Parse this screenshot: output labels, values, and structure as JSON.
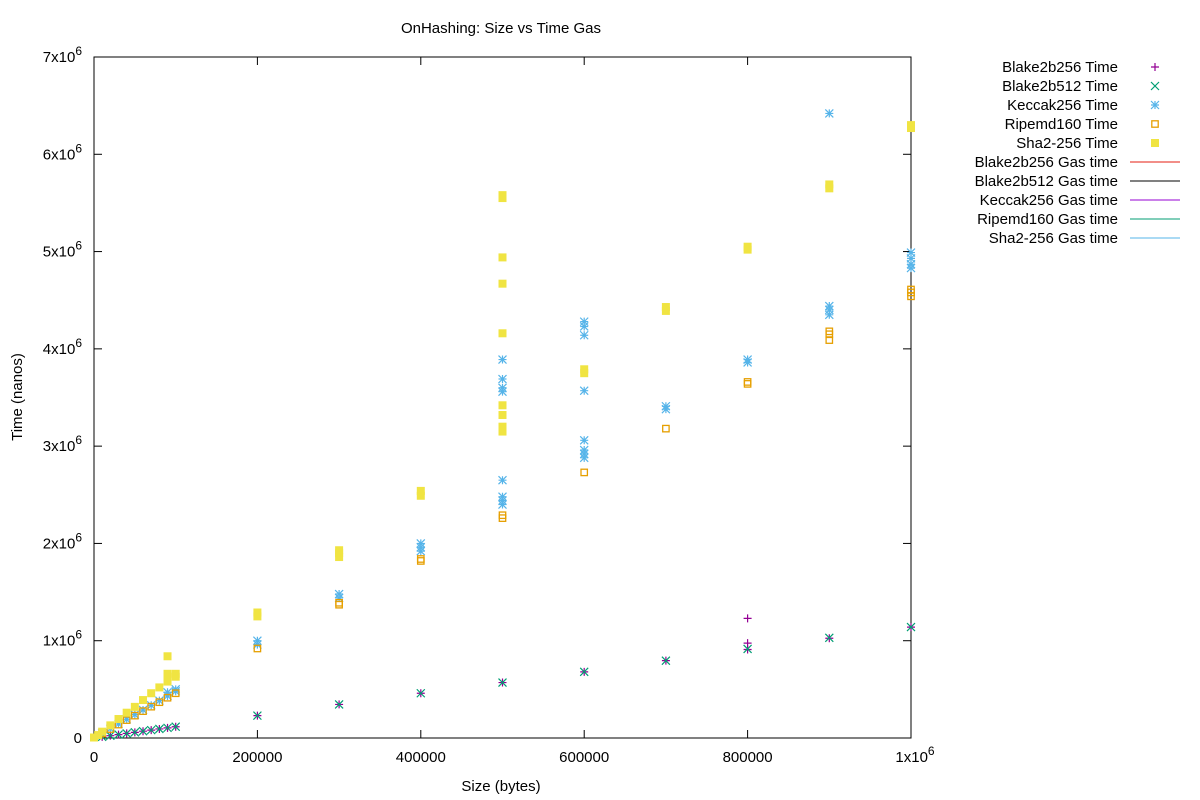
{
  "chart_data": {
    "type": "scatter",
    "title": "OnHashing: Size vs Time   Gas",
    "xlabel": "Size (bytes)",
    "ylabel": "Time (nanos)",
    "xlim": [
      0,
      1000000
    ],
    "ylim": [
      0,
      7000000
    ],
    "x_ticks": [
      {
        "value": 0,
        "label": "0"
      },
      {
        "value": 200000,
        "label": "200000"
      },
      {
        "value": 400000,
        "label": "400000"
      },
      {
        "value": 600000,
        "label": "600000"
      },
      {
        "value": 800000,
        "label": "800000"
      },
      {
        "value": 1000000,
        "label": "1x10",
        "exp": "6"
      }
    ],
    "y_ticks": [
      {
        "value": 0,
        "label": "0"
      },
      {
        "value": 1000000,
        "label": "1x10",
        "exp": "6"
      },
      {
        "value": 2000000,
        "label": "2x10",
        "exp": "6"
      },
      {
        "value": 3000000,
        "label": "3x10",
        "exp": "6"
      },
      {
        "value": 4000000,
        "label": "4x10",
        "exp": "6"
      },
      {
        "value": 5000000,
        "label": "5x10",
        "exp": "6"
      },
      {
        "value": 6000000,
        "label": "6x10",
        "exp": "6"
      },
      {
        "value": 7000000,
        "label": "7x10",
        "exp": "6"
      }
    ],
    "grid": false,
    "legend_position": "outside-right",
    "series": [
      {
        "name": "Blake2b256 Time",
        "marker": "plus",
        "color": "#940094",
        "points": [
          [
            10000,
            12000
          ],
          [
            20000,
            24000
          ],
          [
            30000,
            35000
          ],
          [
            40000,
            47000
          ],
          [
            50000,
            58000
          ],
          [
            60000,
            70000
          ],
          [
            70000,
            81000
          ],
          [
            80000,
            93000
          ],
          [
            90000,
            104000
          ],
          [
            100000,
            116000
          ],
          [
            200000,
            230000
          ],
          [
            300000,
            345000
          ],
          [
            400000,
            460000
          ],
          [
            500000,
            570000
          ],
          [
            600000,
            680000
          ],
          [
            700000,
            795000
          ],
          [
            800000,
            910000
          ],
          [
            800000,
            975000
          ],
          [
            800000,
            1230000
          ],
          [
            900000,
            1025000
          ],
          [
            1000000,
            1140000
          ]
        ]
      },
      {
        "name": "Blake2b512 Time",
        "marker": "cross",
        "color": "#009e73",
        "points": [
          [
            10000,
            12000
          ],
          [
            20000,
            24000
          ],
          [
            30000,
            35000
          ],
          [
            40000,
            47000
          ],
          [
            50000,
            58000
          ],
          [
            60000,
            70000
          ],
          [
            70000,
            81000
          ],
          [
            80000,
            93000
          ],
          [
            90000,
            104000
          ],
          [
            100000,
            116000
          ],
          [
            200000,
            230000
          ],
          [
            300000,
            345000
          ],
          [
            400000,
            460000
          ],
          [
            500000,
            570000
          ],
          [
            600000,
            680000
          ],
          [
            700000,
            795000
          ],
          [
            800000,
            915000
          ],
          [
            900000,
            1030000
          ],
          [
            1000000,
            1140000
          ]
        ]
      },
      {
        "name": "Keccak256 Time",
        "marker": "star",
        "color": "#56b4e9",
        "points": [
          [
            10000,
            48000
          ],
          [
            20000,
            96000
          ],
          [
            30000,
            144000
          ],
          [
            40000,
            192000
          ],
          [
            50000,
            240000
          ],
          [
            60000,
            288000
          ],
          [
            70000,
            336000
          ],
          [
            80000,
            384000
          ],
          [
            90000,
            432000
          ],
          [
            90000,
            470000
          ],
          [
            100000,
            480000
          ],
          [
            100000,
            500000
          ],
          [
            200000,
            960000
          ],
          [
            200000,
            1000000
          ],
          [
            300000,
            1440000
          ],
          [
            300000,
            1480000
          ],
          [
            400000,
            1920000
          ],
          [
            400000,
            1960000
          ],
          [
            400000,
            2000000
          ],
          [
            500000,
            2400000
          ],
          [
            500000,
            2440000
          ],
          [
            500000,
            2480000
          ],
          [
            500000,
            2650000
          ],
          [
            500000,
            3560000
          ],
          [
            500000,
            3600000
          ],
          [
            500000,
            3690000
          ],
          [
            500000,
            3890000
          ],
          [
            600000,
            2880000
          ],
          [
            600000,
            2920000
          ],
          [
            600000,
            2960000
          ],
          [
            600000,
            3060000
          ],
          [
            600000,
            3570000
          ],
          [
            600000,
            4140000
          ],
          [
            600000,
            4230000
          ],
          [
            600000,
            4280000
          ],
          [
            700000,
            3380000
          ],
          [
            700000,
            3410000
          ],
          [
            800000,
            3860000
          ],
          [
            800000,
            3890000
          ],
          [
            900000,
            4350000
          ],
          [
            900000,
            4400000
          ],
          [
            900000,
            4440000
          ],
          [
            900000,
            6420000
          ],
          [
            1000000,
            4830000
          ],
          [
            1000000,
            4870000
          ],
          [
            1000000,
            4930000
          ],
          [
            1000000,
            4990000
          ]
        ]
      },
      {
        "name": "Ripemd160 Time",
        "marker": "open-square",
        "color": "#e69f00",
        "points": [
          [
            10000,
            46000
          ],
          [
            20000,
            92000
          ],
          [
            30000,
            138000
          ],
          [
            40000,
            184000
          ],
          [
            50000,
            230000
          ],
          [
            60000,
            276000
          ],
          [
            70000,
            322000
          ],
          [
            80000,
            368000
          ],
          [
            90000,
            414000
          ],
          [
            100000,
            460000
          ],
          [
            200000,
            920000
          ],
          [
            300000,
            1370000
          ],
          [
            300000,
            1390000
          ],
          [
            400000,
            1820000
          ],
          [
            400000,
            1840000
          ],
          [
            500000,
            2260000
          ],
          [
            500000,
            2290000
          ],
          [
            600000,
            2730000
          ],
          [
            700000,
            3180000
          ],
          [
            800000,
            3640000
          ],
          [
            800000,
            3660000
          ],
          [
            900000,
            4090000
          ],
          [
            900000,
            4150000
          ],
          [
            900000,
            4180000
          ],
          [
            1000000,
            4540000
          ],
          [
            1000000,
            4580000
          ],
          [
            1000000,
            4610000
          ]
        ]
      },
      {
        "name": "Sha2-256 Time",
        "marker": "filled-square",
        "color": "#f0e442",
        "points": [
          [
            0,
            5000
          ],
          [
            5000,
            30000
          ],
          [
            10000,
            65000
          ],
          [
            20000,
            130000
          ],
          [
            30000,
            195000
          ],
          [
            40000,
            260000
          ],
          [
            50000,
            320000
          ],
          [
            60000,
            390000
          ],
          [
            70000,
            460000
          ],
          [
            80000,
            520000
          ],
          [
            90000,
            580000
          ],
          [
            90000,
            630000
          ],
          [
            90000,
            660000
          ],
          [
            90000,
            840000
          ],
          [
            100000,
            630000
          ],
          [
            100000,
            660000
          ],
          [
            200000,
            1250000
          ],
          [
            200000,
            1290000
          ],
          [
            300000,
            1860000
          ],
          [
            300000,
            1900000
          ],
          [
            300000,
            1930000
          ],
          [
            400000,
            2490000
          ],
          [
            400000,
            2540000
          ],
          [
            500000,
            3150000
          ],
          [
            500000,
            3200000
          ],
          [
            500000,
            3320000
          ],
          [
            500000,
            3420000
          ],
          [
            500000,
            4160000
          ],
          [
            500000,
            4670000
          ],
          [
            500000,
            4940000
          ],
          [
            500000,
            5550000
          ],
          [
            500000,
            5580000
          ],
          [
            600000,
            3750000
          ],
          [
            600000,
            3790000
          ],
          [
            700000,
            4390000
          ],
          [
            700000,
            4430000
          ],
          [
            800000,
            5020000
          ],
          [
            800000,
            5050000
          ],
          [
            900000,
            5650000
          ],
          [
            900000,
            5690000
          ],
          [
            1000000,
            6270000
          ],
          [
            1000000,
            6300000
          ]
        ]
      },
      {
        "name": "Blake2b256 Gas time",
        "marker": "line",
        "color": "#e51e10",
        "points": []
      },
      {
        "name": "Blake2b512 Gas time",
        "marker": "line",
        "color": "#000000",
        "points": []
      },
      {
        "name": "Keccak256 Gas time",
        "marker": "line",
        "color": "#9400d3",
        "points": []
      },
      {
        "name": "Ripemd160 Gas time",
        "marker": "line",
        "color": "#009e73",
        "points": []
      },
      {
        "name": "Sha2-256 Gas time",
        "marker": "line",
        "color": "#56b4e9",
        "points": []
      }
    ]
  }
}
